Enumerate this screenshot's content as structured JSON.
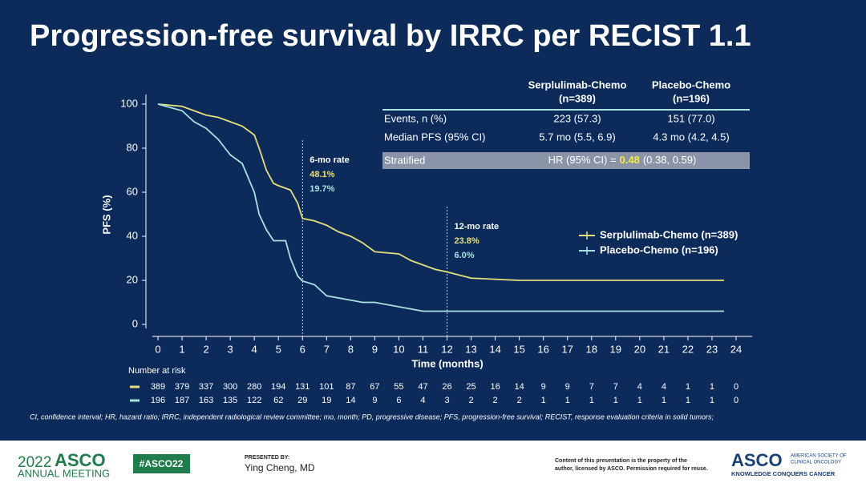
{
  "title": "Progression-free survival by IRRC per RECIST 1.1",
  "chart_data": {
    "type": "line",
    "xlabel": "Time (months)",
    "ylabel": "PFS (%)",
    "xlim": [
      0,
      24
    ],
    "ylim": [
      0,
      100
    ],
    "xticks": [
      0,
      1,
      2,
      3,
      4,
      5,
      6,
      7,
      8,
      9,
      10,
      11,
      12,
      13,
      14,
      15,
      16,
      17,
      18,
      19,
      20,
      21,
      22,
      23,
      24
    ],
    "yticks": [
      0,
      20,
      40,
      60,
      80,
      100
    ],
    "legend": "right",
    "series": [
      {
        "name": "Serplulimab-Chemo (n=389)",
        "color": "#e6e07a",
        "x": [
          0,
          1,
          1.5,
          2,
          2.5,
          3,
          3.5,
          4,
          4.2,
          4.5,
          4.8,
          5,
          5.5,
          5.8,
          6,
          6.5,
          7,
          7.5,
          8,
          8.5,
          9,
          10,
          10.5,
          11,
          11.5,
          12,
          13,
          15,
          23.5
        ],
        "values": [
          100,
          99,
          97,
          95,
          94,
          92,
          90,
          86,
          80,
          70,
          64,
          63,
          61,
          55,
          48.1,
          47,
          45,
          42,
          40,
          37,
          33,
          32,
          29,
          27,
          25,
          23.8,
          21,
          20,
          20
        ]
      },
      {
        "name": "Placebo-Chemo (n=196)",
        "color": "#a9e3df",
        "x": [
          0,
          1,
          1.5,
          2,
          2.5,
          3,
          3.5,
          4,
          4.2,
          4.5,
          4.8,
          5.3,
          5.5,
          5.8,
          6,
          6.5,
          7,
          8,
          8.5,
          9,
          10,
          11,
          23.5
        ],
        "values": [
          100,
          97,
          92,
          89,
          84,
          77,
          73,
          60,
          50,
          43,
          38,
          38,
          30,
          22,
          19.7,
          18,
          13,
          11,
          10,
          10,
          8,
          6,
          6
        ]
      }
    ],
    "annotations": [
      {
        "x": 6,
        "label": "6-mo rate",
        "rates": [
          "48.1%",
          "19.7%"
        ]
      },
      {
        "x": 12,
        "label": "12-mo rate",
        "rates": [
          "23.8%",
          "6.0%"
        ]
      }
    ],
    "risk_table": {
      "label": "Number at risk",
      "rows": [
        [
          389,
          379,
          337,
          300,
          280,
          194,
          131,
          101,
          87,
          67,
          55,
          47,
          26,
          25,
          16,
          14,
          9,
          9,
          7,
          7,
          4,
          4,
          1,
          1,
          0
        ],
        [
          196,
          187,
          163,
          135,
          122,
          62,
          29,
          19,
          14,
          9,
          6,
          4,
          3,
          2,
          2,
          2,
          1,
          1,
          1,
          1,
          1,
          1,
          1,
          1,
          0
        ]
      ]
    }
  },
  "table": {
    "headers": [
      [
        "Serplulimab-Chemo",
        "(n=389)"
      ],
      [
        "Placebo-Chemo",
        "(n=196)"
      ]
    ],
    "rows": [
      [
        "Events, n (%)",
        "223 (57.3)",
        "151 (77.0)"
      ],
      [
        "Median PFS (95% CI)",
        "5.7 mo (5.5, 6.9)",
        "4.3 mo (4.2, 4.5)"
      ]
    ],
    "stratified": {
      "label": "Stratified",
      "hr_prefix": "HR (95% CI) =",
      "hr_value": "0.48",
      "hr_suffix": "(0.38, 0.59)"
    }
  },
  "footnote": "CI, confidence interval; HR, hazard ratio; IRRC, independent radiological review committee; mo, month; PD, progressive disease; PFS, progression-free survival; RECIST, response evaluation criteria in solid tumors;",
  "footer": {
    "meeting_year": "2022",
    "meeting_brand": "ASCO",
    "meeting_sub": "ANNUAL MEETING",
    "hashtag": "#ASCO22",
    "presented_by": "PRESENTED BY:",
    "presenter": "Ying Cheng, MD",
    "copyright": [
      "Content of this presentation is the property of the",
      "author, licensed by ASCO. Permission required for reuse."
    ],
    "org": "ASCO",
    "org_full": [
      "AMERICAN SOCIETY OF",
      "CLINICAL ONCOLOGY"
    ],
    "org_tagline": "KNOWLEDGE CONQUERS CANCER"
  }
}
